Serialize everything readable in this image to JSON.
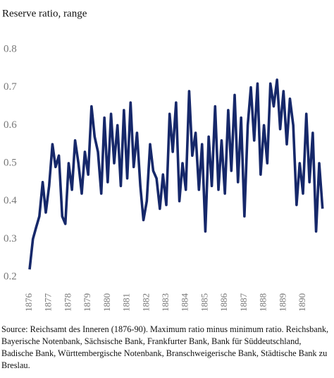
{
  "chart_data": {
    "type": "line",
    "title": "Reserve ratio, range",
    "source": "Source: Reichsamt des Inneren (1876-90). Maximum ratio minus minimum ratio. Reichsbank, Bayerische Notenbank, Sächsische Bank, Frankfurter Bank, Bank für Süddeutschland, Badische Bank, Württembergische Notenbank, Branschweigerische Bank, Städtische Bank zu Breslau.",
    "color": "#16286a",
    "xlim": [
      1876,
      1891.1
    ],
    "xticks": [
      1876,
      1877,
      1878,
      1879,
      1880,
      1881,
      1882,
      1883,
      1884,
      1885,
      1886,
      1887,
      1888,
      1889,
      1890
    ],
    "ylim": [
      0.2,
      0.8
    ],
    "yticks": [
      0.2,
      0.3,
      0.4,
      0.5,
      0.6,
      0.7,
      0.8
    ],
    "grid": false,
    "x": [
      1876,
      1876.17,
      1876.33,
      1876.5,
      1876.67,
      1876.83,
      1877,
      1877.17,
      1877.33,
      1877.5,
      1877.67,
      1877.83,
      1878,
      1878.17,
      1878.33,
      1878.5,
      1878.67,
      1878.83,
      1879,
      1879.17,
      1879.33,
      1879.5,
      1879.67,
      1879.83,
      1880,
      1880.17,
      1880.33,
      1880.5,
      1880.67,
      1880.83,
      1881,
      1881.17,
      1881.33,
      1881.5,
      1881.67,
      1881.83,
      1882,
      1882.17,
      1882.33,
      1882.5,
      1882.67,
      1882.83,
      1883,
      1883.17,
      1883.33,
      1883.5,
      1883.67,
      1883.83,
      1884,
      1884.17,
      1884.33,
      1884.5,
      1884.67,
      1884.83,
      1885,
      1885.17,
      1885.33,
      1885.5,
      1885.67,
      1885.83,
      1886,
      1886.17,
      1886.33,
      1886.5,
      1886.67,
      1886.83,
      1887,
      1887.17,
      1887.33,
      1887.5,
      1887.67,
      1887.83,
      1888,
      1888.17,
      1888.33,
      1888.5,
      1888.67,
      1888.83,
      1889,
      1889.17,
      1889.33,
      1889.5,
      1889.67,
      1889.83,
      1890,
      1890.17,
      1890.33,
      1890.5,
      1890.67,
      1890.83,
      1891
    ],
    "values": [
      0.22,
      0.3,
      0.33,
      0.36,
      0.45,
      0.37,
      0.44,
      0.55,
      0.49,
      0.52,
      0.36,
      0.34,
      0.5,
      0.43,
      0.56,
      0.5,
      0.42,
      0.53,
      0.47,
      0.65,
      0.57,
      0.53,
      0.42,
      0.62,
      0.45,
      0.63,
      0.5,
      0.6,
      0.44,
      0.64,
      0.46,
      0.66,
      0.49,
      0.58,
      0.44,
      0.35,
      0.4,
      0.55,
      0.48,
      0.46,
      0.38,
      0.47,
      0.39,
      0.63,
      0.53,
      0.66,
      0.4,
      0.5,
      0.43,
      0.69,
      0.52,
      0.58,
      0.43,
      0.55,
      0.32,
      0.57,
      0.44,
      0.65,
      0.43,
      0.56,
      0.42,
      0.64,
      0.48,
      0.68,
      0.45,
      0.62,
      0.36,
      0.6,
      0.7,
      0.56,
      0.71,
      0.47,
      0.6,
      0.5,
      0.71,
      0.65,
      0.72,
      0.59,
      0.69,
      0.55,
      0.67,
      0.6,
      0.39,
      0.5,
      0.42,
      0.63,
      0.45,
      0.58,
      0.32,
      0.5,
      0.38
    ]
  }
}
